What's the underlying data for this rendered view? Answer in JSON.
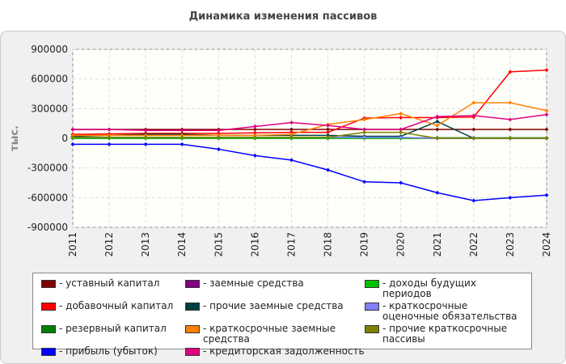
{
  "chart_data": {
    "type": "line",
    "title": "Динамика изменения пассивов",
    "y_label": "тыс.",
    "categories": [
      "2011",
      "2012",
      "2013",
      "2014",
      "2015",
      "2016",
      "2017",
      "2018",
      "2019",
      "2020",
      "2021",
      "2022",
      "2023",
      "2024"
    ],
    "ylim": [
      -900000,
      900000
    ],
    "yticks": [
      -900000,
      -600000,
      -300000,
      0,
      300000,
      600000,
      900000
    ],
    "grid": true,
    "series": [
      {
        "name": "- уставный капитал",
        "color": "#800000",
        "values": [
          90000,
          90000,
          90000,
          90000,
          90000,
          90000,
          90000,
          90000,
          90000,
          90000,
          90000,
          90000,
          90000,
          90000
        ]
      },
      {
        "name": "- добавочный капитал",
        "color": "#ff0000",
        "values": [
          40000,
          45000,
          50000,
          50000,
          50000,
          55000,
          60000,
          60000,
          205000,
          210000,
          210000,
          215000,
          672000,
          690000
        ]
      },
      {
        "name": "- резервный капитал",
        "color": "#008000",
        "values": [
          5000,
          5000,
          5000,
          5000,
          5000,
          5000,
          5000,
          5000,
          5000,
          5000,
          5000,
          5000,
          5000,
          5000
        ]
      },
      {
        "name": "- прибыль (убыток)",
        "color": "#0000ff",
        "values": [
          -60000,
          -60000,
          -60000,
          -60000,
          -110000,
          -175000,
          -220000,
          -320000,
          -440000,
          -450000,
          -550000,
          -630000,
          -600000,
          -575000
        ]
      },
      {
        "name": "- заемные средства",
        "color": "#800080",
        "values": [
          0,
          0,
          0,
          0,
          0,
          0,
          0,
          0,
          0,
          0,
          0,
          0,
          0,
          0
        ]
      },
      {
        "name": "- прочие заемные средства",
        "color": "#004040",
        "values": [
          20000,
          30000,
          40000,
          40000,
          30000,
          30000,
          30000,
          30000,
          20000,
          20000,
          170000,
          0,
          0,
          0
        ]
      },
      {
        "name": "- краткосрочные заемные средства",
        "color": "#ff8000",
        "values": [
          30000,
          30000,
          30000,
          30000,
          30000,
          30000,
          40000,
          140000,
          190000,
          250000,
          130000,
          360000,
          360000,
          280000
        ]
      },
      {
        "name": "- кредиторская задолженность",
        "color": "#e0007f",
        "values": [
          90000,
          90000,
          80000,
          80000,
          80000,
          120000,
          160000,
          130000,
          90000,
          90000,
          220000,
          230000,
          190000,
          240000
        ]
      },
      {
        "name": "- доходы будущих периодов",
        "color": "#00c000",
        "values": [
          0,
          0,
          0,
          0,
          0,
          0,
          0,
          0,
          0,
          0,
          0,
          0,
          0,
          0
        ]
      },
      {
        "name": "- краткосрочные оценочные обязательства",
        "color": "#8080ff",
        "values": [
          10000,
          10000,
          10000,
          10000,
          10000,
          10000,
          10000,
          10000,
          10000,
          10000,
          0,
          0,
          0,
          0
        ]
      },
      {
        "name": "- прочие краткосрочные пассивы",
        "color": "#808000",
        "values": [
          10000,
          10000,
          10000,
          10000,
          10000,
          10000,
          10000,
          10000,
          60000,
          60000,
          0,
          0,
          0,
          0
        ]
      }
    ]
  }
}
